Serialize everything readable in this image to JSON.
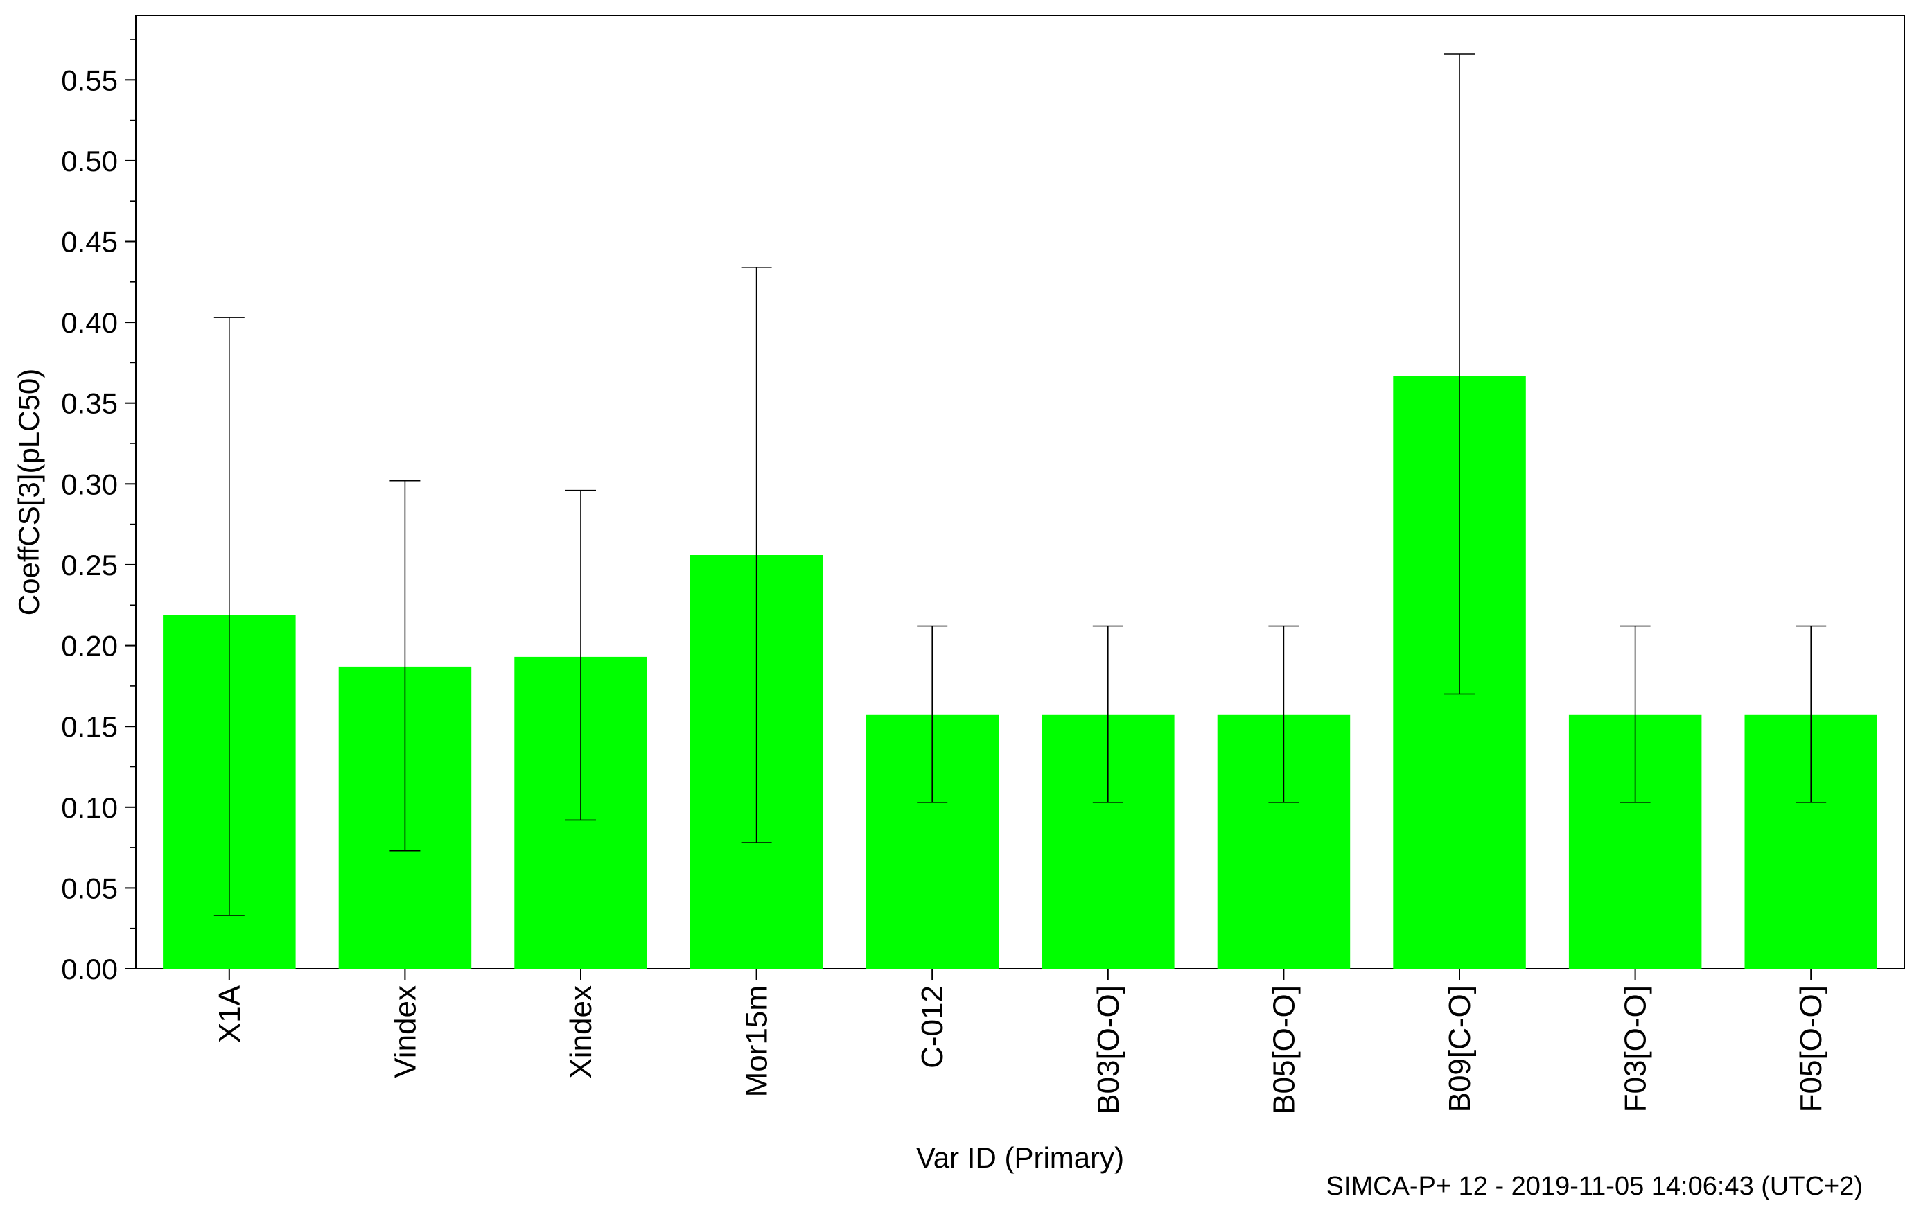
{
  "chart_data": {
    "type": "bar",
    "title": "",
    "xlabel": "Var ID (Primary)",
    "ylabel": "CoeffCS[3](pLC50)",
    "footer": "SIMCA-P+ 12 - 2019-11-05 14:06:43 (UTC+2)",
    "ylim": [
      0,
      0.59
    ],
    "ytick_values": [
      0.0,
      0.05,
      0.1,
      0.15,
      0.2,
      0.25,
      0.3,
      0.35,
      0.4,
      0.45,
      0.5,
      0.55
    ],
    "ytick_labels": [
      "0.00",
      "0.05",
      "0.10",
      "0.15",
      "0.20",
      "0.25",
      "0.30",
      "0.35",
      "0.40",
      "0.45",
      "0.50",
      "0.55"
    ],
    "categories": [
      "X1A",
      "Vindex",
      "Xindex",
      "Mor15m",
      "C-012",
      "B03[O-O]",
      "B05[O-O]",
      "B09[C-O]",
      "F03[O-O]",
      "F05[O-O]"
    ],
    "values": [
      0.219,
      0.187,
      0.193,
      0.256,
      0.157,
      0.157,
      0.157,
      0.367,
      0.157,
      0.157
    ],
    "error_low": [
      0.033,
      0.073,
      0.092,
      0.078,
      0.103,
      0.103,
      0.103,
      0.17,
      0.103,
      0.103
    ],
    "error_high": [
      0.403,
      0.302,
      0.296,
      0.434,
      0.212,
      0.212,
      0.212,
      0.566,
      0.212,
      0.212
    ],
    "grid": false,
    "bar_color": "#00ff00",
    "error_bar_color": "#000000",
    "axis_color": "#000000"
  }
}
